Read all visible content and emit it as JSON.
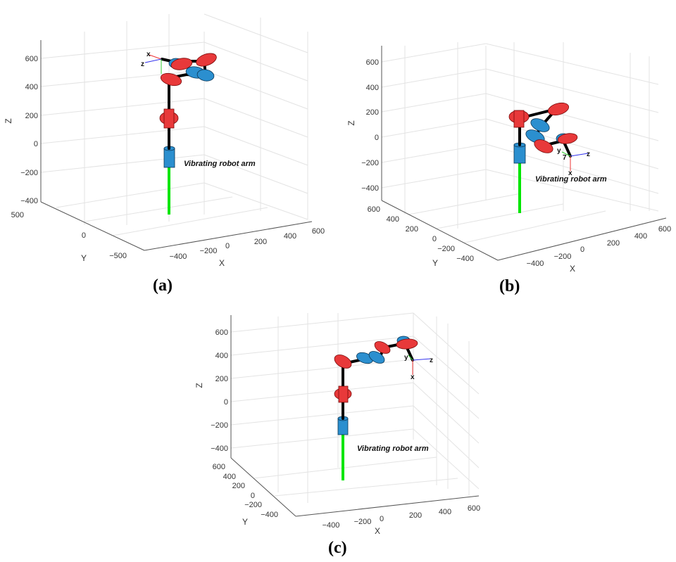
{
  "panels": [
    {
      "caption": "(a)",
      "annotation": "Vibrating robot arm",
      "axes": {
        "x_label": "X",
        "y_label": "Y",
        "z_label": "Z",
        "x_ticks": [
          "−400",
          "−200",
          "0",
          "200",
          "400",
          "600"
        ],
        "y_ticks": [
          "500",
          "0",
          "−500"
        ],
        "z_ticks": [
          "600",
          "400",
          "200",
          "0",
          "−200",
          "−400"
        ]
      },
      "frame_labels": [
        "x",
        "z"
      ]
    },
    {
      "caption": "(b)",
      "annotation": "Vibrating robot arm",
      "axes": {
        "x_label": "X",
        "y_label": "Y",
        "z_label": "Z",
        "x_ticks": [
          "−400",
          "−200",
          "0",
          "200",
          "400",
          "600"
        ],
        "y_ticks": [
          "600",
          "400",
          "200",
          "0",
          "−200",
          "−400"
        ],
        "z_ticks": [
          "600",
          "400",
          "200",
          "0",
          "−200",
          "−400"
        ]
      },
      "frame_labels": [
        "y",
        "7",
        "z",
        "x"
      ]
    },
    {
      "caption": "(c)",
      "annotation": "Vibrating robot arm",
      "axes": {
        "x_label": "X",
        "y_label": "Y",
        "z_label": "Z",
        "x_ticks": [
          "−400",
          "−200",
          "0",
          "200",
          "400",
          "600"
        ],
        "y_ticks": [
          "600",
          "400",
          "200",
          "0",
          "−200",
          "−400"
        ],
        "z_ticks": [
          "600",
          "400",
          "200",
          "0",
          "−200",
          "−400"
        ]
      },
      "frame_labels": [
        "y",
        "z",
        "x"
      ]
    }
  ],
  "colors": {
    "joint_red": "#e8393a",
    "joint_blue": "#2b8fcf",
    "base": "#00e600",
    "link": "#000000"
  }
}
